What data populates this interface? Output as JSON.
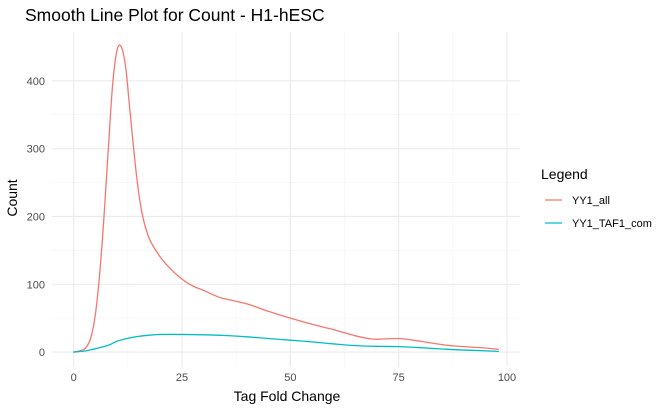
{
  "chart_data": {
    "type": "line",
    "title": "Smooth Line Plot for Count - H1-hESC",
    "xlabel": "Tag Fold Change",
    "ylabel": "Count",
    "xlim": [
      -5,
      103
    ],
    "ylim": [
      -22,
      472
    ],
    "x_ticks": [
      0,
      25,
      50,
      75,
      100
    ],
    "y_ticks": [
      0,
      100,
      200,
      300,
      400
    ],
    "grid": true,
    "legend": {
      "title": "Legend",
      "position": "right"
    },
    "series": [
      {
        "name": "YY1_all",
        "color": "#F8766D",
        "x": [
          0,
          2,
          3,
          4,
          5,
          6,
          7,
          8,
          9,
          10,
          11,
          12,
          13,
          14,
          15,
          16,
          17,
          18,
          20,
          22,
          24,
          26,
          28,
          30,
          32,
          34,
          36,
          40,
          45,
          50,
          55,
          60,
          65,
          68,
          70,
          75,
          80,
          85,
          90,
          95,
          98
        ],
        "values": [
          0,
          3,
          8,
          22,
          55,
          115,
          200,
          300,
          395,
          445,
          450,
          420,
          355,
          290,
          235,
          198,
          175,
          160,
          140,
          125,
          113,
          103,
          96,
          91,
          85,
          80,
          77,
          71,
          60,
          50,
          41,
          33,
          24,
          20,
          19,
          20,
          16,
          11,
          8,
          6,
          4
        ]
      },
      {
        "name": "YY1_TAF1_com",
        "color": "#00BFC4",
        "x": [
          0,
          3,
          5,
          8,
          10,
          13,
          16,
          20,
          25,
          30,
          35,
          40,
          45,
          50,
          55,
          60,
          65,
          70,
          75,
          80,
          85,
          90,
          95,
          98
        ],
        "values": [
          0,
          2,
          5,
          10,
          16,
          21,
          24,
          26,
          26,
          25.5,
          24.5,
          22.5,
          20,
          17.5,
          15,
          12,
          9.5,
          8.5,
          8,
          6.5,
          4.5,
          3,
          2,
          1
        ]
      }
    ]
  }
}
